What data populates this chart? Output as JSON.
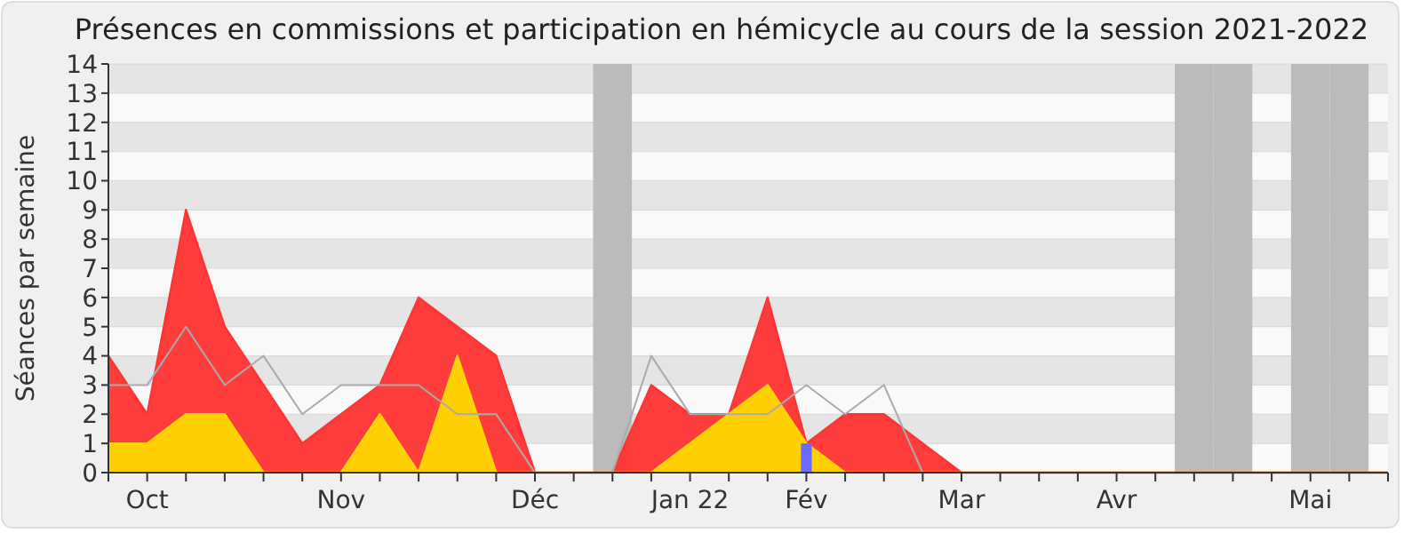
{
  "chart_data": {
    "type": "area",
    "title": "Présences en commissions et participation en hémicycle au cours de la session 2021-2022",
    "ylabel": "Séances par semaine",
    "categories": [
      null,
      "Oct",
      null,
      null,
      null,
      null,
      "Nov",
      null,
      null,
      null,
      null,
      "Déc",
      null,
      null,
      null,
      "Jan 22",
      null,
      null,
      "Fév",
      null,
      null,
      null,
      "Mar",
      null,
      null,
      null,
      "Avr",
      null,
      null,
      null,
      null,
      "Mai",
      null,
      null
    ],
    "series": [
      {
        "type": "bar",
        "color": "#bbbbbb",
        "values": [
          null,
          null,
          null,
          null,
          null,
          null,
          null,
          null,
          null,
          null,
          null,
          null,
          null,
          14,
          null,
          null,
          null,
          null,
          null,
          null,
          null,
          null,
          null,
          null,
          null,
          null,
          null,
          null,
          14,
          14,
          null,
          14,
          14,
          null
        ]
      },
      {
        "color": "#ff3333",
        "values": [
          4,
          2,
          9,
          5,
          3,
          1,
          2,
          3,
          6,
          5,
          4,
          0,
          0,
          0,
          3,
          2,
          2,
          6,
          1,
          2,
          2,
          1,
          0,
          0,
          0,
          0,
          0,
          0,
          0,
          0,
          0,
          0,
          0,
          0
        ]
      },
      {
        "color": "#ffd700",
        "values": [
          1,
          1,
          2,
          2,
          0,
          0,
          0,
          2,
          0,
          4,
          0,
          0,
          0,
          0,
          0,
          1,
          2,
          3,
          1,
          0,
          0,
          0,
          0,
          0,
          0,
          0,
          0,
          0,
          0,
          0,
          0,
          0,
          0,
          0
        ]
      },
      {
        "type": "line",
        "color": "#aaaaaa",
        "values": [
          3,
          3,
          5,
          3,
          4,
          2,
          3,
          3,
          3,
          2,
          2,
          0,
          0,
          0,
          4,
          2,
          2,
          2,
          3,
          2,
          3,
          0,
          0,
          0,
          0,
          0,
          0,
          0,
          0,
          0,
          0,
          0,
          0,
          0
        ]
      },
      {
        "type": "bar",
        "color": "#6b6bff",
        "values": [
          null,
          null,
          null,
          null,
          null,
          null,
          null,
          null,
          null,
          null,
          null,
          null,
          null,
          null,
          null,
          null,
          null,
          null,
          1,
          null,
          null,
          null,
          null,
          null,
          null,
          null,
          null,
          null,
          null,
          null,
          null,
          null,
          null,
          null
        ]
      }
    ],
    "ylim": [
      0,
      14
    ],
    "yticks": [
      0,
      1,
      2,
      3,
      4,
      5,
      6,
      7,
      8,
      9,
      10,
      11,
      12,
      13,
      14
    ],
    "grid": "y"
  }
}
